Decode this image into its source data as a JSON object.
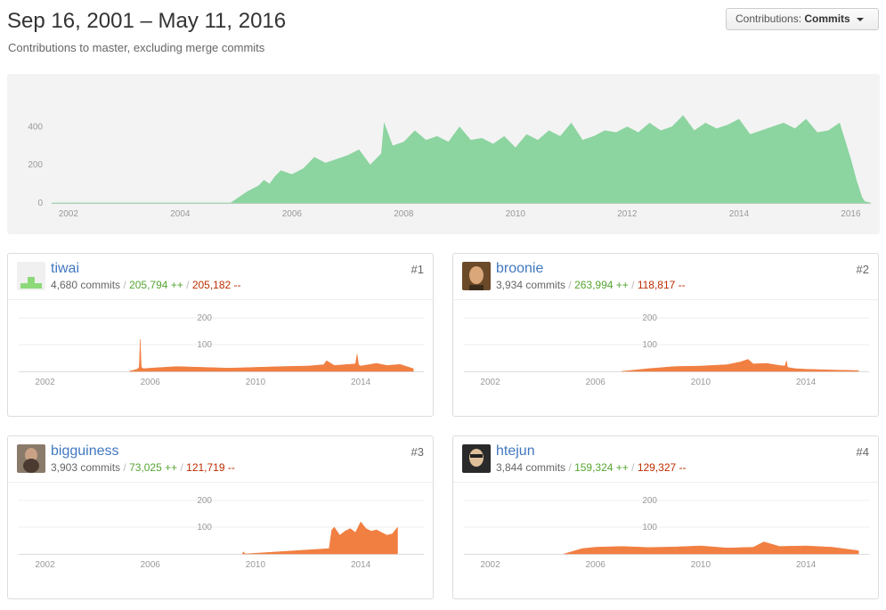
{
  "header": {
    "title": "Sep 16, 2001 – May 11, 2016",
    "subtitle": "Contributions to master, excluding merge commits",
    "select_prefix": "Contributions:",
    "select_value": "Commits"
  },
  "chart_data": [
    {
      "type": "area",
      "title": "",
      "xlabel": "",
      "ylabel": "",
      "x_ticks": [
        "2002",
        "2004",
        "2006",
        "2008",
        "2010",
        "2012",
        "2014",
        "2016"
      ],
      "y_ticks": [
        "0",
        "200",
        "400"
      ],
      "xlim": [
        2001.7,
        2016.36
      ],
      "ylim": [
        0,
        500
      ],
      "color": "#8cd4a0",
      "series": [
        {
          "x": [
            2001.7,
            2002.1,
            2002.12,
            2002.14,
            2004.9,
            2005.0,
            2005.2,
            2005.4,
            2005.5,
            2005.6,
            2005.7,
            2005.8,
            2006.0,
            2006.2,
            2006.4,
            2006.6,
            2006.8,
            2007.0,
            2007.2,
            2007.4,
            2007.6,
            2007.65,
            2007.8,
            2008.0,
            2008.2,
            2008.4,
            2008.6,
            2008.8,
            2009.0,
            2009.2,
            2009.4,
            2009.6,
            2009.8,
            2010.0,
            2010.2,
            2010.4,
            2010.6,
            2010.8,
            2011.0,
            2011.2,
            2011.4,
            2011.6,
            2011.8,
            2012.0,
            2012.2,
            2012.4,
            2012.6,
            2012.8,
            2013.0,
            2013.2,
            2013.4,
            2013.6,
            2013.8,
            2014.0,
            2014.2,
            2014.4,
            2014.6,
            2014.8,
            2015.0,
            2015.2,
            2015.4,
            2015.6,
            2015.8,
            2016.0,
            2016.1,
            2016.2,
            2016.25,
            2016.36
          ],
          "y": [
            0,
            0,
            3,
            0,
            0,
            20,
            60,
            90,
            120,
            100,
            140,
            170,
            150,
            180,
            240,
            210,
            230,
            250,
            280,
            200,
            260,
            420,
            300,
            320,
            380,
            330,
            350,
            320,
            400,
            330,
            340,
            310,
            350,
            290,
            360,
            330,
            380,
            350,
            420,
            330,
            350,
            380,
            370,
            400,
            370,
            420,
            380,
            400,
            460,
            380,
            420,
            390,
            410,
            440,
            360,
            380,
            400,
            420,
            390,
            440,
            370,
            380,
            420,
            230,
            120,
            30,
            8,
            0
          ]
        }
      ]
    },
    {
      "type": "area",
      "title": "",
      "xlabel": "",
      "ylabel": "",
      "x_ticks": [
        "2002",
        "2006",
        "2010",
        "2014"
      ],
      "y_ticks": [
        "100",
        "200"
      ],
      "xlim": [
        2001.0,
        2016.4
      ],
      "ylim": [
        0,
        250
      ],
      "color": "#f17f42",
      "series": [
        {
          "x": [
            2005.2,
            2005.5,
            2005.58,
            2005.62,
            2005.66,
            2005.75,
            2006.0,
            2007.0,
            2008.0,
            2009.0,
            2010.0,
            2011.0,
            2012.0,
            2012.6,
            2012.7,
            2013.0,
            2013.8,
            2013.86,
            2013.92,
            2014.0,
            2014.6,
            2015.0,
            2015.5,
            2016.0
          ],
          "y": [
            0,
            8,
            15,
            120,
            15,
            10,
            12,
            18,
            15,
            12,
            15,
            18,
            20,
            25,
            40,
            22,
            28,
            65,
            25,
            20,
            30,
            22,
            26,
            10
          ]
        }
      ]
    },
    {
      "type": "area",
      "title": "",
      "xlabel": "",
      "ylabel": "",
      "x_ticks": [
        "2002",
        "2006",
        "2010",
        "2014"
      ],
      "y_ticks": [
        "100",
        "200"
      ],
      "xlim": [
        2001.0,
        2016.4
      ],
      "ylim": [
        0,
        250
      ],
      "color": "#f17f42",
      "series": [
        {
          "x": [
            2007.0,
            2008.0,
            2009.0,
            2010.0,
            2011.0,
            2011.5,
            2011.8,
            2012.0,
            2012.5,
            2013.0,
            2013.2,
            2013.26,
            2013.3,
            2013.6,
            2014.0,
            2015.0,
            2016.0
          ],
          "y": [
            0,
            10,
            18,
            20,
            25,
            35,
            45,
            28,
            30,
            22,
            20,
            40,
            15,
            10,
            8,
            5,
            3
          ]
        }
      ]
    },
    {
      "type": "area",
      "title": "",
      "xlabel": "",
      "ylabel": "",
      "x_ticks": [
        "2002",
        "2006",
        "2010",
        "2014"
      ],
      "y_ticks": [
        "100",
        "200"
      ],
      "xlim": [
        2001.0,
        2016.4
      ],
      "ylim": [
        0,
        250
      ],
      "color": "#f17f42",
      "series": [
        {
          "x": [
            2009.5,
            2009.55,
            2009.6,
            2012.8,
            2012.9,
            2013.0,
            2013.2,
            2013.4,
            2013.6,
            2013.8,
            2014.0,
            2014.2,
            2014.4,
            2014.6,
            2014.8,
            2015.0,
            2015.2,
            2015.4
          ],
          "y": [
            0,
            8,
            0,
            20,
            90,
            100,
            70,
            85,
            95,
            80,
            120,
            95,
            85,
            90,
            80,
            70,
            75,
            100
          ]
        }
      ]
    },
    {
      "type": "area",
      "title": "",
      "xlabel": "",
      "ylabel": "",
      "x_ticks": [
        "2002",
        "2006",
        "2010",
        "2014"
      ],
      "y_ticks": [
        "100",
        "200"
      ],
      "xlim": [
        2001.0,
        2016.4
      ],
      "ylim": [
        0,
        250
      ],
      "color": "#f17f42",
      "series": [
        {
          "x": [
            2004.8,
            2005.5,
            2006.0,
            2007.0,
            2008.0,
            2009.0,
            2010.0,
            2011.0,
            2012.0,
            2012.4,
            2013.0,
            2014.0,
            2015.0,
            2016.0
          ],
          "y": [
            0,
            20,
            25,
            28,
            24,
            26,
            30,
            22,
            25,
            45,
            28,
            30,
            25,
            12
          ]
        }
      ]
    }
  ],
  "contributors": [
    {
      "username": "tiwai",
      "rank": "#1",
      "commits": "4,680 commits",
      "additions": "205,794 ++",
      "deletions": "205,182 --",
      "separator": "/"
    },
    {
      "username": "broonie",
      "rank": "#2",
      "commits": "3,934 commits",
      "additions": "263,994 ++",
      "deletions": "118,817 --",
      "separator": "/"
    },
    {
      "username": "bigguiness",
      "rank": "#3",
      "commits": "3,903 commits",
      "additions": "73,025 ++",
      "deletions": "121,719 --",
      "separator": "/"
    },
    {
      "username": "htejun",
      "rank": "#4",
      "commits": "3,844 commits",
      "additions": "159,324 ++",
      "deletions": "129,327 --",
      "separator": "/"
    }
  ]
}
